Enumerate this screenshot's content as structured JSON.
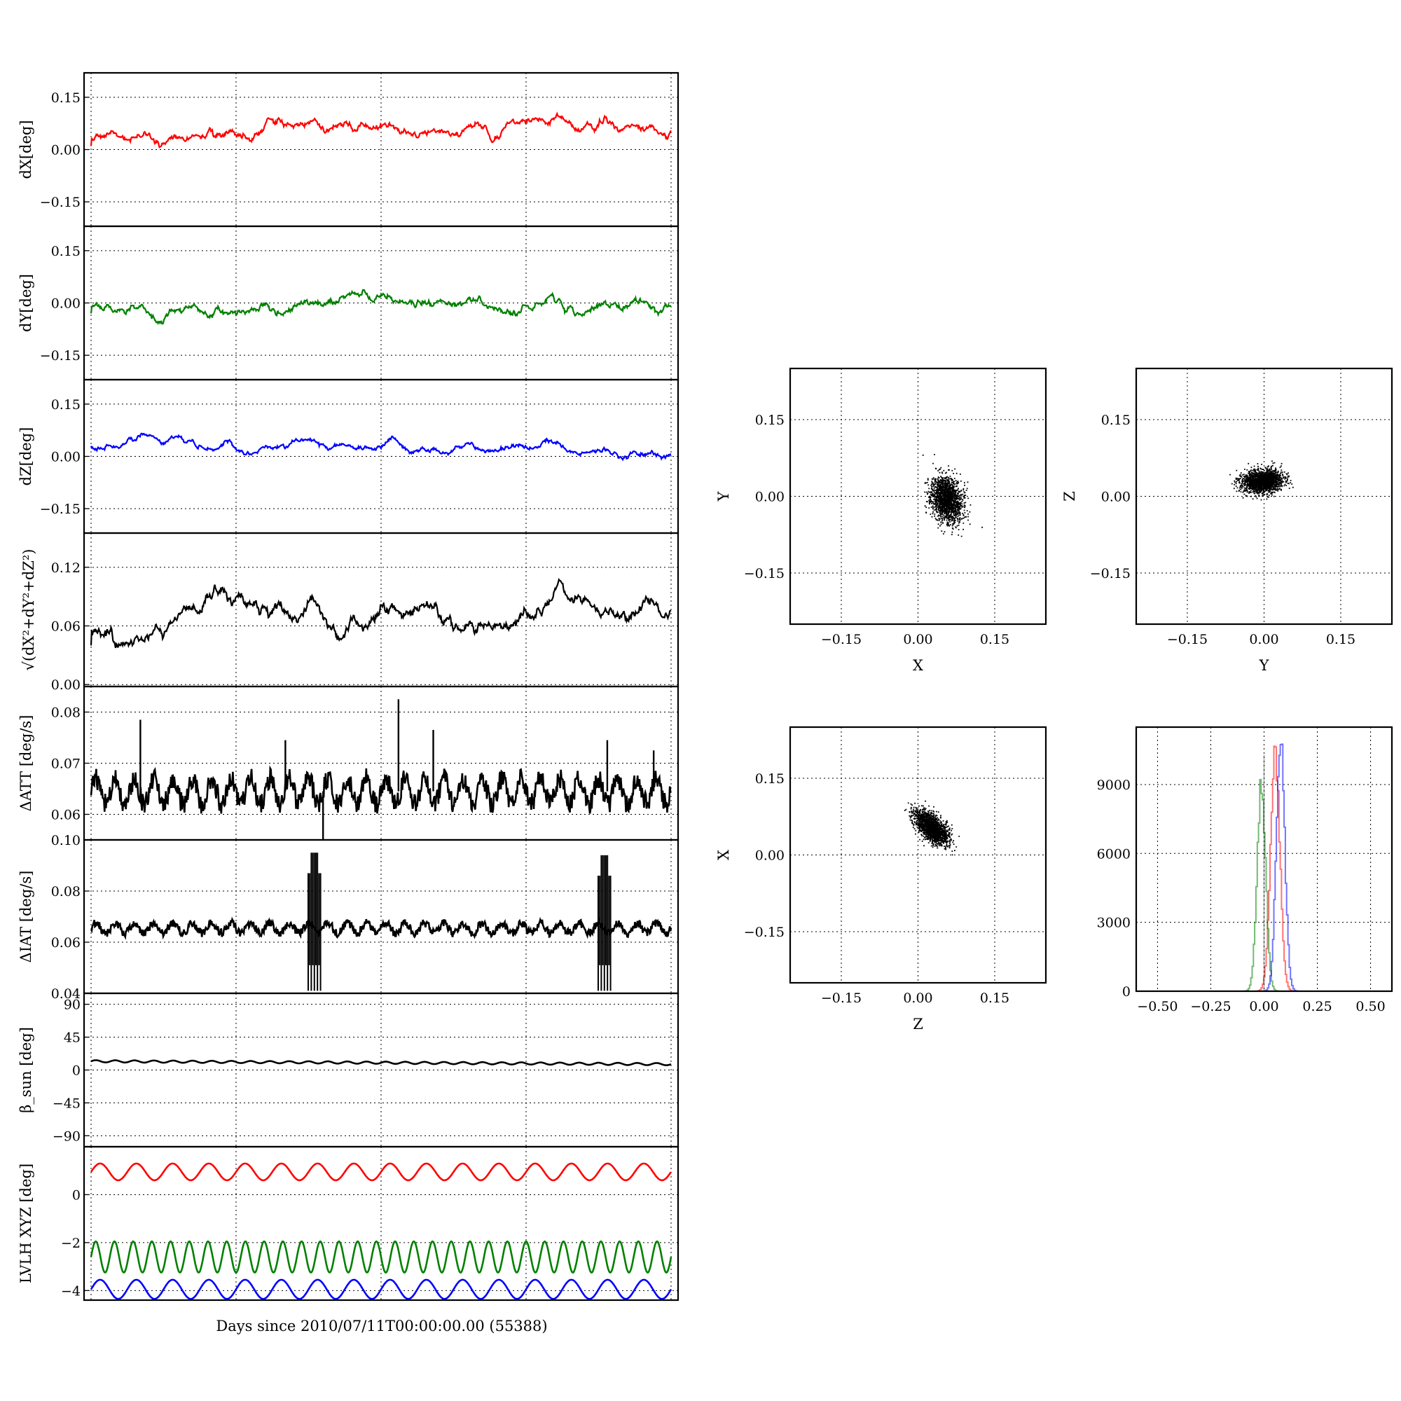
{
  "figure": {
    "xlabel": "Days since 2010/07/11T00:00:00.00 (55388)"
  },
  "chart_data": [
    {
      "type": "line",
      "ylabel": "dX[deg]",
      "ylim": [
        -0.22,
        0.22
      ],
      "yticks": [
        "0.15",
        "0.00",
        "−0.15"
      ],
      "ytick_values": [
        0.15,
        0,
        -0.15
      ],
      "grid": true,
      "series": [
        {
          "color": "#ff0000",
          "mean": 0.055,
          "amplitude": 0.02,
          "drift": 0.03,
          "start": 0.01
        }
      ]
    },
    {
      "type": "line",
      "ylabel": "dY[deg]",
      "ylim": [
        -0.22,
        0.22
      ],
      "yticks": [
        "0.15",
        "0.00",
        "−0.15"
      ],
      "ytick_values": [
        0.15,
        0,
        -0.15
      ],
      "grid": true,
      "series": [
        {
          "color": "#008000",
          "mean": -0.015,
          "amplitude": 0.02,
          "drift": 0.01,
          "start": -0.03
        }
      ]
    },
    {
      "type": "line",
      "ylabel": "dZ[deg]",
      "ylim": [
        -0.22,
        0.22
      ],
      "yticks": [
        "0.15",
        "0.00",
        "−0.15"
      ],
      "ytick_values": [
        0.15,
        0,
        -0.15
      ],
      "grid": true,
      "series": [
        {
          "color": "#0000ff",
          "mean": 0.03,
          "amplitude": 0.015,
          "drift": 0.0,
          "start": 0.03
        }
      ]
    },
    {
      "type": "line",
      "ylabel": "√(dX²+dY²+dZ²)",
      "ylim": [
        -0.002,
        0.155
      ],
      "yticks": [
        "0.12",
        "0.06",
        "0.00"
      ],
      "ytick_values": [
        0.12,
        0.06,
        0.0
      ],
      "grid": true,
      "series": [
        {
          "color": "#000000",
          "mean": 0.065,
          "amplitude": 0.012,
          "drift": 0.025,
          "start": 0.04
        }
      ]
    },
    {
      "type": "line",
      "ylabel": "ΔATT [deg/s]",
      "ylim": [
        0.055,
        0.085
      ],
      "yticks": [
        "0.08",
        "0.07",
        "0.06"
      ],
      "ytick_values": [
        0.08,
        0.07,
        0.06
      ],
      "grid": true,
      "series": [
        {
          "color": "#000000",
          "mean": 0.0645,
          "amplitude": 0.0025,
          "cycles": 30
        }
      ],
      "spikes": [
        {
          "x": 0.085,
          "y": 0.0785
        },
        {
          "x": 0.335,
          "y": 0.0745
        },
        {
          "x": 0.53,
          "y": 0.0825
        },
        {
          "x": 0.59,
          "y": 0.0765
        },
        {
          "x": 0.89,
          "y": 0.0745
        },
        {
          "x": 0.97,
          "y": 0.0725
        },
        {
          "x": 0.4,
          "y": 0.055
        }
      ]
    },
    {
      "type": "line",
      "ylabel": "ΔIAT [deg/s]",
      "ylim": [
        0.04,
        0.1
      ],
      "yticks": [
        "0.10",
        "0.08",
        "0.06",
        "0.04"
      ],
      "ytick_values": [
        0.1,
        0.08,
        0.06,
        0.04
      ],
      "grid": true,
      "series": [
        {
          "color": "#000000",
          "mean": 0.0655,
          "amplitude": 0.002,
          "cycles": 30
        }
      ],
      "bursts": [
        {
          "x": 0.385,
          "ymin": 0.041,
          "ymax": 0.095
        },
        {
          "x": 0.885,
          "ymin": 0.041,
          "ymax": 0.094
        }
      ]
    },
    {
      "type": "line",
      "ylabel": "β_sun [deg]",
      "ylim": [
        -105,
        105
      ],
      "yticks": [
        "90",
        "45",
        "0",
        "−45",
        "−90"
      ],
      "ytick_values": [
        90,
        45,
        0,
        -45,
        -90
      ],
      "grid": true,
      "series": [
        {
          "color": "#000000",
          "mean": 10,
          "amplitude": 1.5,
          "cycles": 30,
          "drift": -4,
          "start": 12
        }
      ]
    },
    {
      "type": "line",
      "ylabel": "LVLH XYZ [deg]",
      "ylim": [
        -4.4,
        2.0
      ],
      "yticks": [
        "0",
        "−2",
        "−4"
      ],
      "ytick_values": [
        0,
        -2,
        -4
      ],
      "grid": true,
      "series": [
        {
          "color": "#ff0000",
          "mean": 0.95,
          "amplitude": 0.35,
          "cycles": 16
        },
        {
          "color": "#008000",
          "mean": -2.6,
          "amplitude": 0.65,
          "cycles": 31
        },
        {
          "color": "#0000ff",
          "mean": -3.95,
          "amplitude": 0.4,
          "cycles": 16
        }
      ]
    },
    {
      "type": "scatter",
      "xlabel": "X",
      "ylabel": "Y",
      "xlim": [
        -0.25,
        0.25
      ],
      "ylim": [
        -0.25,
        0.25
      ],
      "xticks": [
        "−0.15",
        "0.00",
        "0.15"
      ],
      "yticks": [
        "0.15",
        "0.00",
        "−0.15"
      ],
      "tick_values": [
        -0.15,
        0,
        0.15
      ],
      "grid": true,
      "cloud": {
        "cx": 0.055,
        "cy": -0.005,
        "sx": 0.015,
        "sy": 0.022,
        "rho": -0.2,
        "n": 1800,
        "seed": 11
      }
    },
    {
      "type": "scatter",
      "xlabel": "Y",
      "ylabel": "Z",
      "xlim": [
        -0.25,
        0.25
      ],
      "ylim": [
        -0.25,
        0.25
      ],
      "xticks": [
        "−0.15",
        "0.00",
        "0.15"
      ],
      "yticks": [
        "0.15",
        "0.00",
        "−0.15"
      ],
      "tick_values": [
        -0.15,
        0,
        0.15
      ],
      "grid": true,
      "cloud": {
        "cx": -0.005,
        "cy": 0.03,
        "sx": 0.02,
        "sy": 0.011,
        "rho": 0.1,
        "n": 1800,
        "seed": 23
      }
    },
    {
      "type": "scatter",
      "xlabel": "Z",
      "ylabel": "X",
      "xlim": [
        -0.25,
        0.25
      ],
      "ylim": [
        -0.25,
        0.25
      ],
      "xticks": [
        "−0.15",
        "0.00",
        "0.15"
      ],
      "yticks": [
        "0.15",
        "0.00",
        "−0.15"
      ],
      "tick_values": [
        -0.15,
        0,
        0.15
      ],
      "grid": true,
      "cloud": {
        "cx": 0.025,
        "cy": 0.055,
        "sx": 0.016,
        "sy": 0.016,
        "rho": -0.6,
        "n": 1800,
        "seed": 37
      }
    },
    {
      "type": "histogram",
      "xlim": [
        -0.6,
        0.6
      ],
      "ylim": [
        0,
        11500
      ],
      "xticks": [
        "−0.50",
        "−0.25",
        "0.00",
        "0.25",
        "0.50"
      ],
      "xtick_values": [
        -0.5,
        -0.25,
        0,
        0.25,
        0.5
      ],
      "yticks": [
        "9000",
        "6000",
        "3000",
        "0"
      ],
      "ytick_values": [
        9000,
        6000,
        3000,
        0
      ],
      "grid": true,
      "series": [
        {
          "color": "#ff0000",
          "center": 0.05,
          "sigma": 0.022,
          "peak": 10300
        },
        {
          "color": "#008000",
          "center": -0.015,
          "sigma": 0.02,
          "peak": 9000
        },
        {
          "color": "#0000ff",
          "center": 0.075,
          "sigma": 0.02,
          "peak": 10800
        }
      ]
    }
  ]
}
